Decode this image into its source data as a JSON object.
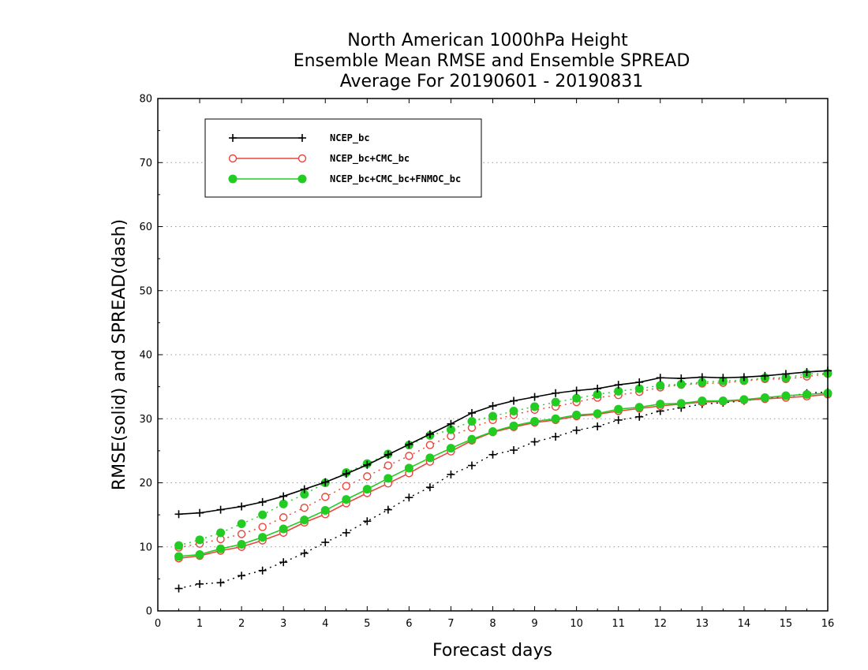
{
  "chart_data": {
    "type": "line",
    "title": [
      "North American 1000hPa Height",
      "Ensemble Mean RMSE and Ensemble SPREAD",
      "Average For 20190601 - 20190831"
    ],
    "xlabel": "Forecast days",
    "ylabel": "RMSE(solid) and SPREAD(dash)",
    "xlim": [
      0,
      16
    ],
    "ylim": [
      0,
      80
    ],
    "xticks": [
      "0",
      "1",
      "2",
      "3",
      "4",
      "5",
      "6",
      "7",
      "8",
      "9",
      "10",
      "11",
      "12",
      "13",
      "14",
      "15",
      "16"
    ],
    "yticks": [
      "0",
      "10",
      "20",
      "30",
      "40",
      "50",
      "60",
      "70",
      "80"
    ],
    "grid": "horizontal dotted",
    "legend_position": "top-left",
    "x": [
      0.5,
      1,
      1.5,
      2,
      2.5,
      3,
      3.5,
      4,
      4.5,
      5,
      5.5,
      6,
      6.5,
      7,
      7.5,
      8,
      8.5,
      9,
      9.5,
      10,
      10.5,
      11,
      11.5,
      12,
      12.5,
      13,
      13.5,
      14,
      14.5,
      15,
      15.5,
      16
    ],
    "series": [
      {
        "name": "NCEP_bc",
        "color": "#000000",
        "marker": "plus",
        "rmse": [
          15.1,
          15.3,
          15.8,
          16.3,
          17.0,
          17.9,
          19.0,
          20.1,
          21.4,
          22.8,
          24.4,
          26.0,
          27.6,
          29.2,
          30.9,
          32.0,
          32.8,
          33.4,
          34.0,
          34.4,
          34.7,
          35.3,
          35.7,
          36.4,
          36.3,
          36.5,
          36.4,
          36.5,
          36.7,
          37.0,
          37.3,
          37.5
        ],
        "spread": [
          3.5,
          4.2,
          4.4,
          5.5,
          6.3,
          7.6,
          9.0,
          10.7,
          12.2,
          14.0,
          15.8,
          17.7,
          19.3,
          21.3,
          22.7,
          24.4,
          25.1,
          26.4,
          27.2,
          28.2,
          28.8,
          29.8,
          30.3,
          31.2,
          31.7,
          32.3,
          32.5,
          32.8,
          33.2,
          33.4,
          34.0,
          34.2
        ]
      },
      {
        "name": "NCEP_bc+CMC_bc",
        "color": "#e8453c",
        "marker": "open-circle",
        "rmse": [
          8.2,
          8.6,
          9.4,
          10.0,
          11.0,
          12.2,
          13.8,
          15.1,
          16.8,
          18.4,
          19.9,
          21.5,
          23.3,
          24.9,
          26.6,
          27.9,
          28.7,
          29.4,
          29.8,
          30.4,
          30.7,
          31.2,
          31.6,
          32.0,
          32.3,
          32.6,
          32.7,
          32.9,
          33.1,
          33.3,
          33.5,
          33.8
        ],
        "spread": [
          9.9,
          10.5,
          11.2,
          12.0,
          13.1,
          14.6,
          16.1,
          17.8,
          19.5,
          21.0,
          22.7,
          24.2,
          25.9,
          27.3,
          28.6,
          29.8,
          30.6,
          31.4,
          31.9,
          32.6,
          33.3,
          33.7,
          34.2,
          34.9,
          35.3,
          35.5,
          35.6,
          35.9,
          36.2,
          36.2,
          36.6,
          37.0
        ]
      },
      {
        "name": "NCEP_bc+CMC_bc+FNMOC_bc",
        "color": "#22cc22",
        "marker": "filled-circle",
        "rmse": [
          8.5,
          8.8,
          9.7,
          10.4,
          11.5,
          12.8,
          14.2,
          15.7,
          17.4,
          19.0,
          20.7,
          22.3,
          23.9,
          25.4,
          26.8,
          28.0,
          28.9,
          29.6,
          30.0,
          30.6,
          30.8,
          31.5,
          31.8,
          32.3,
          32.4,
          32.8,
          32.8,
          33.0,
          33.3,
          33.6,
          33.8,
          34.0
        ],
        "spread": [
          10.2,
          11.1,
          12.2,
          13.6,
          15.0,
          16.7,
          18.2,
          20.0,
          21.6,
          23.0,
          24.5,
          25.9,
          27.4,
          28.3,
          29.6,
          30.4,
          31.2,
          31.9,
          32.6,
          33.2,
          33.8,
          34.3,
          34.7,
          35.2,
          35.4,
          35.7,
          35.9,
          36.0,
          36.4,
          36.4,
          37.0,
          37.1
        ]
      }
    ]
  }
}
